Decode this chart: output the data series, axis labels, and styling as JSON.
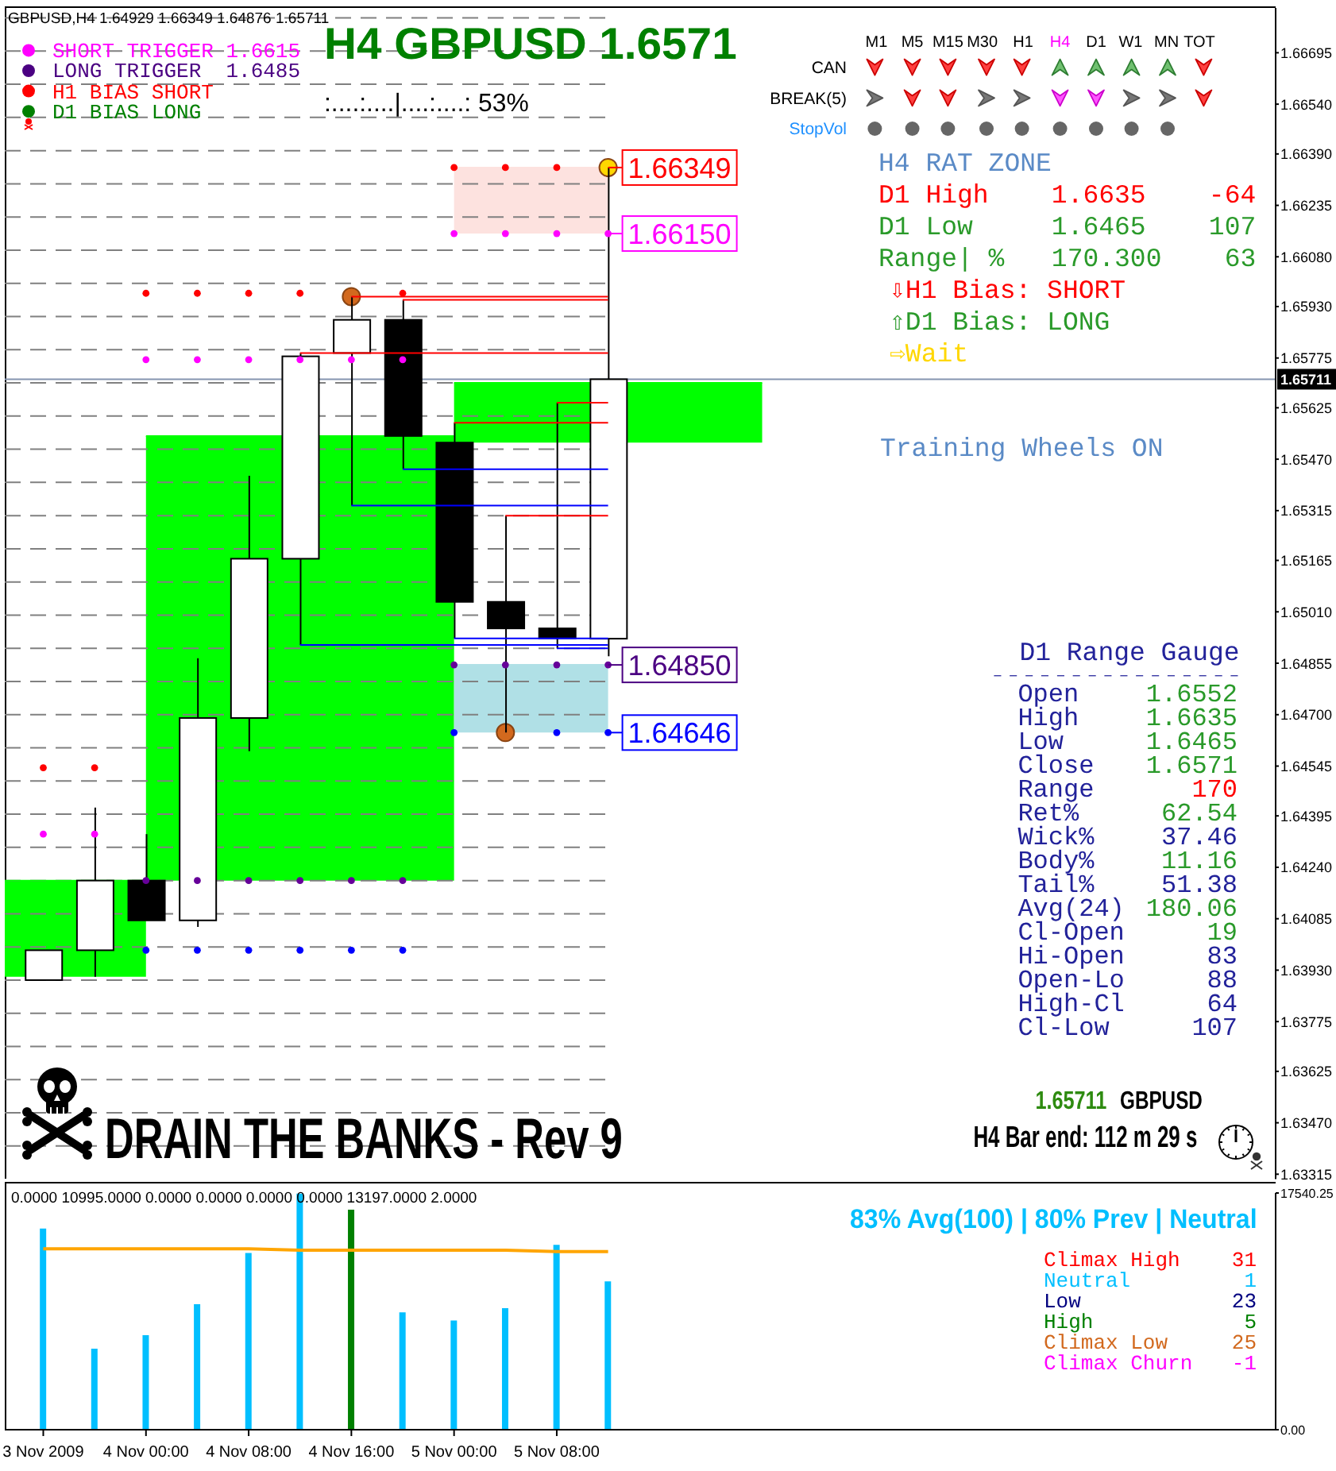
{
  "chart_data": [
    {
      "type": "candlestick",
      "title": "GBPUSD,H4 1.64929 1.66349 1.64876 1.65711",
      "x": [
        "2009-11-03T16:00",
        "2009-11-03T20:00",
        "2009-11-04T00:00",
        "2009-11-04T04:00",
        "2009-11-04T08:00",
        "2009-11-04T12:00",
        "2009-11-04T16:00",
        "2009-11-04T20:00",
        "2009-11-05T00:00",
        "2009-11-05T04:00",
        "2009-11-05T08:00",
        "2009-11-05T12:00"
      ],
      "ohlc": [
        [
          1.639,
          1.6399,
          1.639,
          1.6399
        ],
        [
          1.6399,
          1.6442,
          1.6391,
          1.642
        ],
        [
          1.642,
          1.6434,
          1.6408,
          1.6408
        ],
        [
          1.6408,
          1.6487,
          1.6406,
          1.6469
        ],
        [
          1.6469,
          1.6542,
          1.6459,
          1.6517
        ],
        [
          1.6517,
          1.6579,
          1.6491,
          1.6578
        ],
        [
          1.6579,
          1.6596,
          1.6533,
          1.6589
        ],
        [
          1.6589,
          1.6595,
          1.6544,
          1.6554
        ],
        [
          1.6552,
          1.6558,
          1.6493,
          1.6504
        ],
        [
          1.6504,
          1.653,
          1.64646,
          1.6496
        ],
        [
          1.6496,
          1.6564,
          1.649,
          1.6493
        ],
        [
          1.64929,
          1.66349,
          1.64876,
          1.65711
        ]
      ],
      "colors": [
        "#ffffff",
        "#ffffff",
        "#000000",
        "#ffffff",
        "#ffffff",
        "#ffffff",
        "#ffffff",
        "#000000",
        "#000000",
        "#000000",
        "#000000",
        "#ffffff"
      ],
      "color": "#000000",
      "xlim": [
        "2009-11-03T13:00",
        "2009-11-07T16:00"
      ],
      "ylim": [
        1.633,
        1.6683
      ],
      "yticks": [
        1.66695,
        {
          "value": 1.6654,
          "label": "1.66540"
        },
        {
          "value": 1.6639,
          "label": "1.66390"
        },
        1.66235,
        {
          "value": 1.6608,
          "label": "1.66080"
        },
        {
          "value": 1.6593,
          "label": "1.65930"
        },
        1.65775,
        1.65625,
        {
          "value": 1.6547,
          "label": "1.65470"
        },
        1.65315,
        1.65165,
        {
          "value": 1.6501,
          "label": "1.65010"
        },
        1.64855,
        {
          "value": 1.647,
          "label": "1.64700"
        },
        1.64545,
        1.64395,
        {
          "value": 1.6424,
          "label": "1.64240"
        },
        1.64085,
        {
          "value": 1.6393,
          "label": "1.63930"
        },
        1.63775,
        1.63625,
        {
          "value": 1.6347,
          "label": "1.63470"
        },
        1.63315
      ],
      "tick_labels": "y",
      "series": [
        {
          "type": "line",
          "color": "#00ff00",
          "x": [
            "2009-11-03T13:00",
            "2009-11-04T00:00"
          ],
          "values": [
            1.642,
            1.642
          ],
          "lower": [
            1.6391,
            1.6391
          ],
          "upper": [
            1.642,
            1.642
          ]
        },
        {
          "type": "line",
          "color": "#00ff00",
          "x": [
            "2009-11-04T00:00",
            "2009-11-05T00:00"
          ],
          "values": [
            1.6554,
            1.6554
          ],
          "lower": [
            1.642,
            1.642
          ],
          "upper": [
            1.6554,
            1.6554
          ]
        },
        {
          "type": "line",
          "color": "#00ff00",
          "x": [
            "2009-11-05T00:00",
            "2009-11-06T00:00"
          ],
          "values": [
            1.657,
            1.657
          ],
          "lower": [
            1.6552,
            1.6552
          ],
          "upper": [
            1.657,
            1.657
          ]
        },
        {
          "type": "line",
          "color": "#fde2df",
          "x": [
            "2009-11-05T00:00",
            "2009-11-05T12:00"
          ],
          "values": [
            1.66349,
            1.66349
          ],
          "lower": [
            1.6615,
            1.6615
          ],
          "upper": [
            1.66349,
            1.66349
          ]
        },
        {
          "type": "line",
          "color": "#b0e0e6",
          "x": [
            "2009-11-05T00:00",
            "2009-11-05T12:00"
          ],
          "values": [
            1.6485,
            1.6485
          ],
          "lower": [
            1.64646,
            1.64646
          ],
          "upper": [
            1.6485,
            1.6485
          ]
        },
        {
          "type": "line",
          "color": "#ff0000",
          "x": [
            "2009-11-04T12:00",
            "2009-11-05T12:00"
          ],
          "values": [
            1.6579,
            1.6579
          ]
        },
        {
          "type": "line",
          "color": "#ff0000",
          "x": [
            "2009-11-04T16:00",
            "2009-11-05T12:00"
          ],
          "values": [
            1.6596,
            1.6596
          ]
        },
        {
          "type": "line",
          "color": "#ff0000",
          "x": [
            "2009-11-04T20:00",
            "2009-11-05T12:00"
          ],
          "values": [
            1.6595,
            1.6595
          ]
        },
        {
          "type": "line",
          "color": "#ff0000",
          "x": [
            "2009-11-05T00:00",
            "2009-11-05T12:00"
          ],
          "values": [
            1.6558,
            1.6558
          ]
        },
        {
          "type": "line",
          "color": "#ff0000",
          "x": [
            "2009-11-05T04:00",
            "2009-11-05T12:00"
          ],
          "values": [
            1.653,
            1.653
          ]
        },
        {
          "type": "line",
          "color": "#ff0000",
          "x": [
            "2009-11-05T08:00",
            "2009-11-05T12:00"
          ],
          "values": [
            1.6564,
            1.6564
          ]
        },
        {
          "type": "line",
          "color": "#0000ff",
          "x": [
            "2009-11-04T12:00",
            "2009-11-05T12:00"
          ],
          "values": [
            1.6491,
            1.6491
          ]
        },
        {
          "type": "line",
          "color": "#0000ff",
          "x": [
            "2009-11-04T16:00",
            "2009-11-05T12:00"
          ],
          "values": [
            1.6533,
            1.6533
          ]
        },
        {
          "type": "line",
          "color": "#0000ff",
          "x": [
            "2009-11-04T20:00",
            "2009-11-05T12:00"
          ],
          "values": [
            1.6544,
            1.6544
          ]
        },
        {
          "type": "line",
          "color": "#0000ff",
          "x": [
            "2009-11-05T00:00",
            "2009-11-05T12:00"
          ],
          "values": [
            1.6493,
            1.6493
          ]
        },
        {
          "type": "line",
          "color": "#0000ff",
          "x": [
            "2009-11-05T08:00",
            "2009-11-05T12:00"
          ],
          "values": [
            1.649,
            1.649
          ]
        },
        {
          "type": "scatter",
          "marker": "circle",
          "color": "#ff0000",
          "values": [
            1.6454,
            1.6454,
            1.6597,
            1.6597,
            1.6597,
            1.6597,
            null,
            1.6597,
            1.66349,
            1.66349,
            1.66349,
            null
          ]
        },
        {
          "type": "scatter",
          "marker": "circle",
          "color": "#ff00ff",
          "values": [
            1.6434,
            1.6434,
            1.6577,
            1.6577,
            1.6577,
            1.6577,
            1.6577,
            1.6577,
            1.6615,
            1.6615,
            1.6615,
            1.6615
          ]
        },
        {
          "type": "scatter",
          "marker": "circle",
          "color": "#660099",
          "values": [
            null,
            null,
            1.642,
            1.642,
            1.642,
            1.642,
            1.642,
            1.642,
            1.6485,
            1.6485,
            1.6485,
            1.6485
          ]
        },
        {
          "type": "scatter",
          "marker": "circle",
          "color": "#0000ff",
          "values": [
            null,
            null,
            1.6399,
            1.6399,
            1.6399,
            1.6399,
            1.6399,
            1.6399,
            1.64646,
            null,
            1.64646,
            1.64646
          ]
        },
        {
          "type": "scatter",
          "marker": "circle",
          "colors": [
            null,
            null,
            null,
            null,
            null,
            null,
            "#d2691e",
            null,
            null,
            "#d2691e",
            null,
            "#ffd700"
          ],
          "values": [
            null,
            null,
            null,
            null,
            null,
            null,
            1.6596,
            null,
            null,
            1.64646,
            null,
            1.66349
          ]
        }
      ],
      "ref_lines": [
        {
          "axis": "y",
          "value": 1.65711,
          "label": "1.65711",
          "color": "#8595b0"
        },
        {
          "axis": "y",
          "value": 1.668,
          "color": "#808080",
          "line_style": "dashed"
        },
        {
          "axis": "y",
          "value": 1.667,
          "color": "#808080",
          "line_style": "dashed"
        },
        {
          "axis": "y",
          "value": 1.666,
          "color": "#808080",
          "line_style": "dashed"
        },
        {
          "axis": "y",
          "value": 1.665,
          "color": "#808080",
          "line_style": "dashed"
        },
        {
          "axis": "y",
          "value": 1.664,
          "color": "#808080",
          "line_style": "dashed"
        },
        {
          "axis": "y",
          "value": 1.663,
          "color": "#808080",
          "line_style": "dashed"
        },
        {
          "axis": "y",
          "value": 1.662,
          "color": "#808080",
          "line_style": "dashed"
        },
        {
          "axis": "y",
          "value": 1.661,
          "color": "#808080",
          "line_style": "dashed"
        },
        {
          "axis": "y",
          "value": 1.66,
          "color": "#808080",
          "line_style": "dashed"
        },
        {
          "axis": "y",
          "value": 1.659,
          "color": "#808080",
          "line_style": "dashed"
        },
        {
          "axis": "y",
          "value": 1.658,
          "color": "#808080",
          "line_style": "dashed"
        },
        {
          "axis": "y",
          "value": 1.657,
          "color": "#808080",
          "line_style": "dashed"
        },
        {
          "axis": "y",
          "value": 1.656,
          "color": "#808080",
          "line_style": "dashed"
        },
        {
          "axis": "y",
          "value": 1.655,
          "color": "#808080",
          "line_style": "dashed"
        },
        {
          "axis": "y",
          "value": 1.654,
          "color": "#808080",
          "line_style": "dashed"
        },
        {
          "axis": "y",
          "value": 1.653,
          "color": "#808080",
          "line_style": "dashed"
        },
        {
          "axis": "y",
          "value": 1.652,
          "color": "#808080",
          "line_style": "dashed"
        },
        {
          "axis": "y",
          "value": 1.651,
          "color": "#808080",
          "line_style": "dashed"
        },
        {
          "axis": "y",
          "value": 1.65,
          "color": "#808080",
          "line_style": "dashed"
        },
        {
          "axis": "y",
          "value": 1.649,
          "color": "#808080",
          "line_style": "dashed"
        },
        {
          "axis": "y",
          "value": 1.648,
          "color": "#808080",
          "line_style": "dashed"
        },
        {
          "axis": "y",
          "value": 1.647,
          "color": "#808080",
          "line_style": "dashed"
        },
        {
          "axis": "y",
          "value": 1.646,
          "color": "#808080",
          "line_style": "dashed"
        },
        {
          "axis": "y",
          "value": 1.645,
          "color": "#808080",
          "line_style": "dashed"
        },
        {
          "axis": "y",
          "value": 1.644,
          "color": "#808080",
          "line_style": "dashed"
        },
        {
          "axis": "y",
          "value": 1.643,
          "color": "#808080",
          "line_style": "dashed"
        },
        {
          "axis": "y",
          "value": 1.642,
          "color": "#808080",
          "line_style": "dashed"
        },
        {
          "axis": "y",
          "value": 1.641,
          "color": "#808080",
          "line_style": "dashed"
        },
        {
          "axis": "y",
          "value": 1.64,
          "color": "#808080",
          "line_style": "dashed"
        },
        {
          "axis": "y",
          "value": 1.639,
          "color": "#808080",
          "line_style": "dashed"
        },
        {
          "axis": "y",
          "value": 1.638,
          "color": "#808080",
          "line_style": "dashed"
        },
        {
          "axis": "y",
          "value": 1.637,
          "color": "#808080",
          "line_style": "dashed"
        },
        {
          "axis": "y",
          "value": 1.636,
          "color": "#808080",
          "line_style": "dashed"
        },
        {
          "axis": "y",
          "value": 1.635,
          "color": "#808080",
          "line_style": "dashed"
        },
        {
          "axis": "y",
          "value": 1.634,
          "color": "#808080",
          "line_style": "dashed"
        }
      ],
      "annotations": [
        "SHORT TRIGGER 1.6615",
        "LONG TRIGGER  1.6485",
        "H1 BIAS SHORT",
        "D1 BIAS LONG",
        "H4 GBPUSD 1.6571",
        ":....:....|....:....: 53%",
        "M1",
        "M5",
        "M15",
        "M30",
        "H1",
        "H4",
        "D1",
        "W1",
        "MN",
        "TOT",
        "CAN",
        "BREAK(5)",
        "StopVol",
        "H4 RAT ZONE",
        "D1 High    1.6635    -64",
        "D1 Low     1.6465    107",
        "Range| %   170.300    63",
        "⇩H1 Bias: SHORT",
        "⇧D1 Bias: LONG",
        "⇨Wait",
        "Training Wheels ON",
        "D1 Range Gauge",
        "----------------",
        "Open",
        "1.6552",
        "High",
        "1.6635",
        "Low",
        "1.6465",
        "Close",
        "1.6571",
        "Range",
        "170",
        "Ret%",
        "62.54",
        "Wick%",
        "37.46",
        "Body%",
        "11.16",
        "Tail%",
        "51.38",
        "Avg(24)",
        "180.06",
        "Cl-Open",
        "19",
        "Hi-Open",
        "83",
        "Open-Lo",
        "88",
        "High-Cl",
        "64",
        "Cl-Low",
        "107",
        "1.65711",
        "GBPUSD",
        "H4 Bar end: 112 m 29 s",
        "DRAIN THE BANKS - Rev 9",
        {
          "text": "1.66349",
          "x": "2009-11-05T12:00",
          "y": 1.66349
        },
        {
          "text": "1.66150",
          "x": "2009-11-05T12:00",
          "y": 1.6615
        },
        {
          "text": "1.64850",
          "x": "2009-11-05T12:00",
          "y": 1.6485
        },
        {
          "text": "1.64646",
          "x": "2009-11-05T12:00",
          "y": 1.64646
        }
      ]
    },
    {
      "type": "bar",
      "title": "0.0000 10995.0000 0.0000 0.0000 0.0000 0.0000 13197.0000 2.0000",
      "x": [
        "2009-11-03T16:00",
        "2009-11-03T20:00",
        "2009-11-04T00:00",
        "2009-11-04T04:00",
        "2009-11-04T08:00",
        "2009-11-04T12:00",
        "2009-11-04T16:00",
        "2009-11-04T20:00",
        "2009-11-05T00:00",
        "2009-11-05T04:00",
        "2009-11-05T08:00",
        "2009-11-05T12:00"
      ],
      "series": [
        {
          "type": "bar",
          "colors": [
            "#00bfff",
            "#00bfff",
            "#00bfff",
            "#00bfff",
            "#00bfff",
            "#00bfff",
            "#008000",
            "#00bfff",
            "#00bfff",
            "#00bfff",
            "#00bfff",
            "#00bfff"
          ],
          "values": [
            14900,
            6000,
            7000,
            9300,
            13100,
            17500,
            16300,
            8700,
            8100,
            9000,
            13700,
            10995
          ]
        },
        {
          "type": "line",
          "color": "#ffa500",
          "values": [
            13400,
            13400,
            13400,
            13400,
            13400,
            13300,
            13300,
            13300,
            13300,
            13300,
            13197,
            13197
          ]
        }
      ],
      "xlim": [
        "2009-11-03T13:00",
        "2009-11-07T16:00"
      ],
      "xticks": [
        {
          "value": "2009-11-03T16:00",
          "label": "3 Nov 2009"
        },
        {
          "value": "2009-11-04T00:00",
          "label": "4 Nov 00:00"
        },
        {
          "value": "2009-11-04T08:00",
          "label": "4 Nov 08:00"
        },
        {
          "value": "2009-11-04T16:00",
          "label": "4 Nov 16:00"
        },
        {
          "value": "2009-11-05T00:00",
          "label": "5 Nov 00:00"
        },
        {
          "value": "2009-11-05T08:00",
          "label": "5 Nov 08:00"
        }
      ],
      "ylim": [
        0,
        17540.25
      ],
      "yticks": [
        {
          "value": 0,
          "label": "0.00"
        },
        {
          "value": 17540.25,
          "label": "17540.25"
        }
      ],
      "annotations": [
        "83% Avg(100) | 80% Prev | Neutral",
        "Climax High",
        "31",
        "Neutral",
        "1",
        "Low",
        "23",
        "High",
        "5",
        "Climax Low",
        "25",
        "Climax Churn",
        "-1"
      ]
    }
  ]
}
